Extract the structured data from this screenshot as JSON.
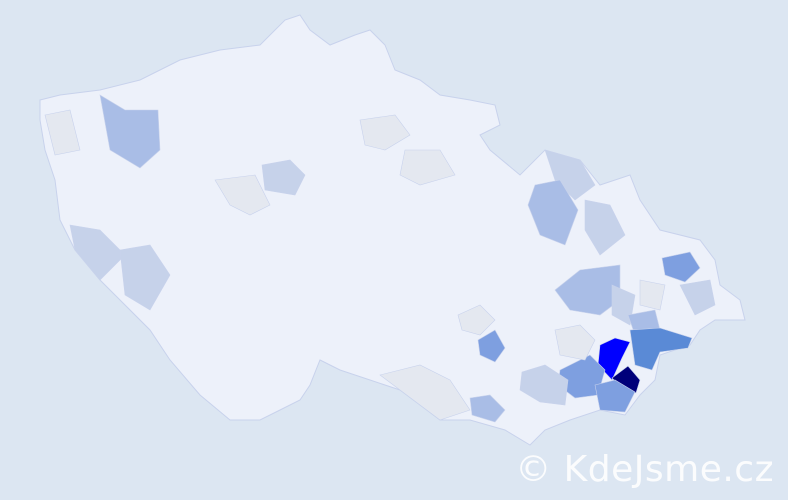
{
  "map": {
    "colors": {
      "background": "#dce6f2",
      "base": "#edf1fa",
      "border": "#c8d2ec",
      "level1": "#e4e8f0",
      "level2": "#c6d2ea",
      "level3": "#a9bde6",
      "level4": "#7e9fe0",
      "level5": "#5a8ad6",
      "level6": "#0000ff",
      "level7": "#00007a"
    }
  },
  "watermark": {
    "text": "© KdeJsme.cz"
  }
}
